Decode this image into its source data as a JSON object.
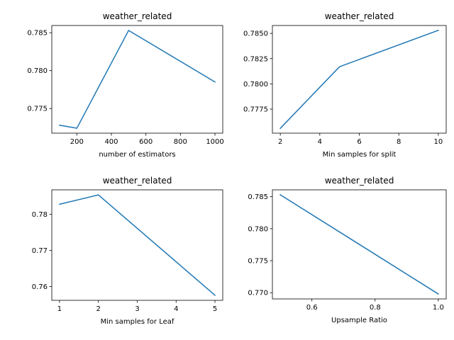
{
  "chart_data": [
    {
      "type": "line",
      "title": "weather_related",
      "xlabel": "number of estimators",
      "ylabel": "",
      "x": [
        100,
        200,
        500,
        1000
      ],
      "series": [
        {
          "values": [
            0.7728,
            0.7724,
            0.7853,
            0.7785
          ]
        }
      ],
      "xlim": [
        55,
        1045
      ],
      "ylim": [
        0.77175,
        0.78595
      ],
      "xticks": [
        200,
        400,
        600,
        800,
        1000
      ],
      "xtick_labels": [
        "200",
        "400",
        "600",
        "800",
        "1000"
      ],
      "yticks": [
        0.775,
        0.78,
        0.785
      ],
      "ytick_labels": [
        "0.775",
        "0.780",
        "0.785"
      ],
      "grid": false,
      "color": "#1f77b4"
    },
    {
      "type": "line",
      "title": "weather_related",
      "xlabel": "Min samples for split",
      "ylabel": "",
      "x": [
        2,
        5,
        10
      ],
      "series": [
        {
          "values": [
            0.7756,
            0.7817,
            0.7853
          ]
        }
      ],
      "xlim": [
        1.6,
        10.4
      ],
      "ylim": [
        0.77512,
        0.78578
      ],
      "xticks": [
        2,
        4,
        6,
        8,
        10
      ],
      "xtick_labels": [
        "2",
        "4",
        "6",
        "8",
        "10"
      ],
      "yticks": [
        0.7775,
        0.78,
        0.7825,
        0.785
      ],
      "ytick_labels": [
        "0.7775",
        "0.7800",
        "0.7825",
        "0.7850"
      ],
      "grid": false,
      "color": "#1f77b4"
    },
    {
      "type": "line",
      "title": "weather_related",
      "xlabel": "Min samples for Leaf",
      "ylabel": "",
      "x": [
        1,
        2,
        5
      ],
      "series": [
        {
          "values": [
            0.7828,
            0.7854,
            0.7576
          ]
        }
      ],
      "xlim": [
        0.8,
        5.2
      ],
      "ylim": [
        0.7562,
        0.7868
      ],
      "xticks": [
        1,
        2,
        3,
        4,
        5
      ],
      "xtick_labels": [
        "1",
        "2",
        "3",
        "4",
        "5"
      ],
      "yticks": [
        0.76,
        0.77,
        0.78
      ],
      "ytick_labels": [
        "0.76",
        "0.77",
        "0.78"
      ],
      "grid": false,
      "color": "#1f77b4"
    },
    {
      "type": "line",
      "title": "weather_related",
      "xlabel": "Upsample Ratio",
      "ylabel": "",
      "x": [
        0.5,
        1.0
      ],
      "series": [
        {
          "values": [
            0.7853,
            0.7698
          ]
        }
      ],
      "xlim": [
        0.475,
        1.025
      ],
      "ylim": [
        0.76903,
        0.78607
      ],
      "xticks": [
        0.6,
        0.8,
        1.0
      ],
      "xtick_labels": [
        "0.6",
        "0.8",
        "1.0"
      ],
      "yticks": [
        0.77,
        0.775,
        0.78,
        0.785
      ],
      "ytick_labels": [
        "0.770",
        "0.775",
        "0.780",
        "0.785"
      ],
      "grid": false,
      "color": "#1f77b4"
    }
  ]
}
